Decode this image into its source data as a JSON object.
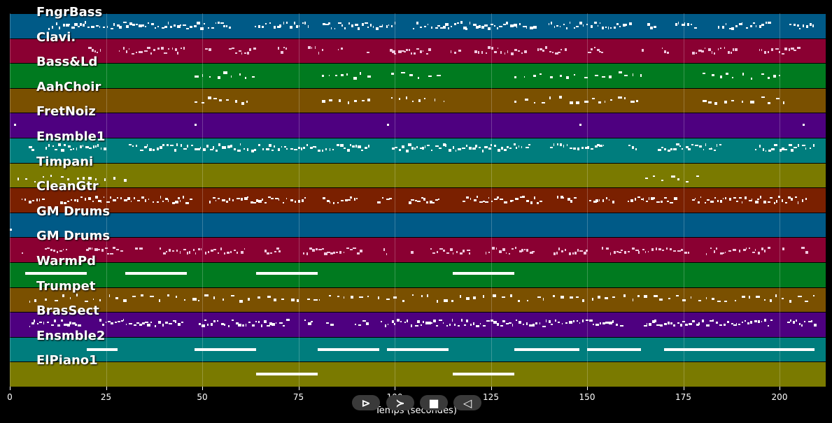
{
  "tracks": [
    {
      "name": "FngrBass",
      "color": "#005a87"
    },
    {
      "name": "Clavi.",
      "color": "#8a0032"
    },
    {
      "name": "Bass&Ld",
      "color": "#007a1f"
    },
    {
      "name": "AahChoir",
      "color": "#7a5000"
    },
    {
      "name": "FretNoiz",
      "color": "#4e0080"
    },
    {
      "name": "Ensmble1",
      "color": "#007d7d"
    },
    {
      "name": "Timpani",
      "color": "#7a7a00"
    },
    {
      "name": "CleanGtr",
      "color": "#7a2000"
    },
    {
      "name": "GM Drums",
      "color": "#005a87"
    },
    {
      "name": "GM Drums",
      "color": "#8a0032"
    },
    {
      "name": "WarmPd",
      "color": "#007a1f"
    },
    {
      "name": "Trumpet",
      "color": "#7a5000"
    },
    {
      "name": "BrasSect",
      "color": "#4e0080"
    },
    {
      "name": "Ensmble2",
      "color": "#007d7d"
    },
    {
      "name": "ElPiano1",
      "color": "#7a7a00"
    }
  ],
  "xaxis": {
    "label": "Temps (secondes)",
    "ticks": [
      0,
      25,
      50,
      75,
      100,
      125,
      150,
      175,
      200
    ],
    "max": 212
  },
  "controls": {
    "play_label": "⊳",
    "forward_label": "≻",
    "stop_label": "■",
    "back_label": "◁"
  },
  "segments": [
    [
      [
        10,
        210,
        0.5,
        "w",
        "dense"
      ]
    ],
    [
      [
        15,
        205,
        0.5,
        "p",
        "dense"
      ]
    ],
    [
      [
        48,
        63,
        0.5,
        "w",
        "sparse"
      ],
      [
        81,
        95,
        0.5,
        "w",
        "sparse"
      ],
      [
        99,
        113,
        0.5,
        "w",
        "sparse"
      ],
      [
        131,
        164,
        0.5,
        "w",
        "sparse"
      ],
      [
        180,
        202,
        0.5,
        "w",
        "sparse"
      ]
    ],
    [
      [
        48,
        63,
        0.5,
        "w",
        "sparse"
      ],
      [
        81,
        95,
        0.5,
        "w",
        "sparse"
      ],
      [
        99,
        113,
        0.5,
        "w",
        "sparse"
      ],
      [
        131,
        164,
        0.5,
        "w",
        "sparse"
      ],
      [
        180,
        202,
        0.5,
        "w",
        "sparse"
      ]
    ],
    [
      [
        1,
        2,
        0.5,
        "w",
        "single"
      ],
      [
        48,
        49,
        0.5,
        "w",
        "single"
      ],
      [
        98,
        99,
        0.5,
        "w",
        "single"
      ],
      [
        148,
        149,
        0.5,
        "w",
        "single"
      ],
      [
        206,
        207,
        0.5,
        "w",
        "single"
      ]
    ],
    [
      [
        2,
        209,
        0.4,
        "w",
        "dense"
      ]
    ],
    [
      [
        2,
        30,
        0.65,
        "w",
        "sparse"
      ],
      [
        165,
        180,
        0.65,
        "w",
        "sparse"
      ]
    ],
    [
      [
        3,
        207,
        0.5,
        "w",
        "dense"
      ]
    ],
    [
      [
        0,
        2,
        0.7,
        "w",
        "single"
      ]
    ],
    [
      [
        3,
        207,
        0.55,
        "p",
        "dense"
      ]
    ],
    [
      [
        4,
        20,
        0.45,
        "w",
        "block"
      ],
      [
        30,
        46,
        0.45,
        "w",
        "block"
      ],
      [
        64,
        80,
        0.45,
        "w",
        "block"
      ],
      [
        115,
        131,
        0.45,
        "w",
        "block"
      ]
    ],
    [
      [
        5,
        209,
        0.45,
        "w",
        "sparse"
      ]
    ],
    [
      [
        5,
        209,
        0.45,
        "w",
        "dense"
      ]
    ],
    [
      [
        20,
        28,
        0.5,
        "w",
        "block"
      ],
      [
        48,
        64,
        0.5,
        "w",
        "block"
      ],
      [
        80,
        96,
        0.5,
        "w",
        "block"
      ],
      [
        98,
        114,
        0.5,
        "w",
        "block"
      ],
      [
        131,
        148,
        0.5,
        "w",
        "block"
      ],
      [
        150,
        164,
        0.5,
        "w",
        "block"
      ],
      [
        170,
        209,
        0.5,
        "w",
        "block"
      ]
    ],
    [
      [
        64,
        80,
        0.5,
        "w",
        "block"
      ],
      [
        115,
        131,
        0.5,
        "w",
        "block"
      ]
    ]
  ]
}
